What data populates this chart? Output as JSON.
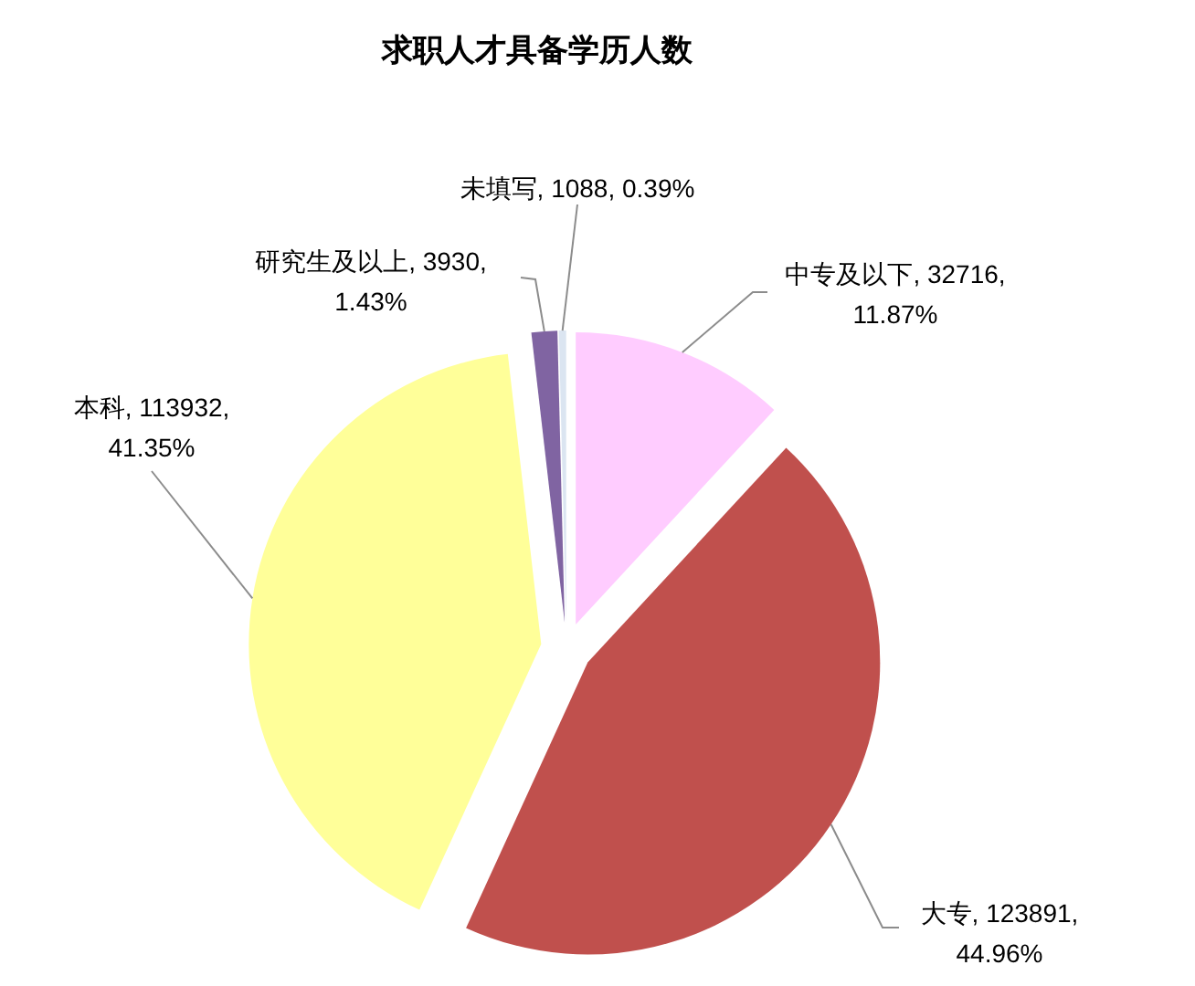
{
  "chart_data": {
    "type": "pie",
    "title": "求职人才具备学历人数",
    "categories": [
      "中专及以下",
      "大专",
      "本科",
      "研究生及以上",
      "未填写"
    ],
    "values": [
      32716,
      123891,
      113932,
      3930,
      1088
    ],
    "colors": [
      "#ffccff",
      "#c0504d",
      "#ffff99",
      "#8064a2",
      "#dbe5f1"
    ],
    "value_labels": [
      "32716, 11.87%",
      "123891, 44.96%",
      "113932, 41.35%",
      "3930, 1.43%",
      "1088, 0.39%"
    ]
  }
}
